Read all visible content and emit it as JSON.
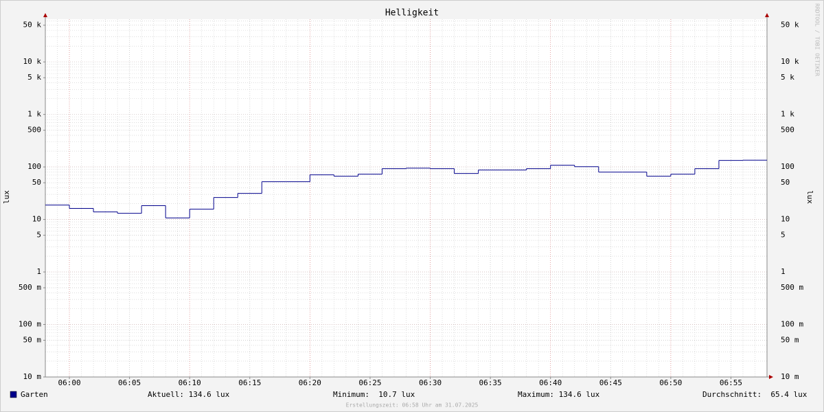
{
  "chart_data": {
    "type": "step",
    "title": "Helligkeit",
    "y_label": "lux",
    "watermark": "RRDTOOL / TOBI OETIKER",
    "footer": "Erstellungszeit: 06:58 Uhr am 31.07.2025",
    "log_scale": true,
    "grid": true,
    "x": [
      "05:58",
      "06:00",
      "06:02",
      "06:04",
      "06:06",
      "06:08",
      "06:10",
      "06:12",
      "06:14",
      "06:16",
      "06:18",
      "06:20",
      "06:22",
      "06:24",
      "06:26",
      "06:28",
      "06:30",
      "06:32",
      "06:34",
      "06:36",
      "06:38",
      "06:40",
      "06:42",
      "06:44",
      "06:46",
      "06:48",
      "06:50",
      "06:52",
      "06:54",
      "06:56"
    ],
    "series": [
      {
        "name": "Garten",
        "color": "#00008b",
        "values": [
          18.8,
          16.2,
          13.9,
          13.1,
          18.3,
          10.7,
          15.7,
          26.2,
          31.4,
          52.4,
          52.4,
          70.7,
          66.6,
          72.9,
          92.7,
          95,
          92.7,
          75.1,
          87.3,
          87.3,
          92.7,
          107.8,
          101,
          79.8,
          79.8,
          66.6,
          72.9,
          92.7,
          133,
          134.6
        ]
      }
    ],
    "summary": [
      "Aktuell: 134.6 lux",
      "Minimum:  10.7 lux",
      "Maximum: 134.6 lux",
      "Durchschnitt:  65.4 lux"
    ],
    "xlim": [
      "05:58",
      "06:58"
    ],
    "xticks": [
      "06:00",
      "06:05",
      "06:10",
      "06:15",
      "06:20",
      "06:25",
      "06:30",
      "06:35",
      "06:40",
      "06:45",
      "06:50",
      "06:55"
    ],
    "ylim": [
      0.01,
      65000
    ],
    "yticks": [
      {
        "value": 50000,
        "label": "50 k"
      },
      {
        "value": 10000,
        "label": "10 k"
      },
      {
        "value": 5000,
        "label": "5 k"
      },
      {
        "value": 1000,
        "label": "1 k"
      },
      500,
      100,
      50,
      10,
      5,
      1,
      {
        "value": 0.5,
        "label": "500 m"
      },
      {
        "value": 0.1,
        "label": "100 m"
      },
      {
        "value": 0.05,
        "label": "50 m"
      },
      {
        "value": 0.01,
        "label": "10 m"
      }
    ],
    "grid_color": "#c8c8c8",
    "major_grid_color": "#e08080"
  }
}
